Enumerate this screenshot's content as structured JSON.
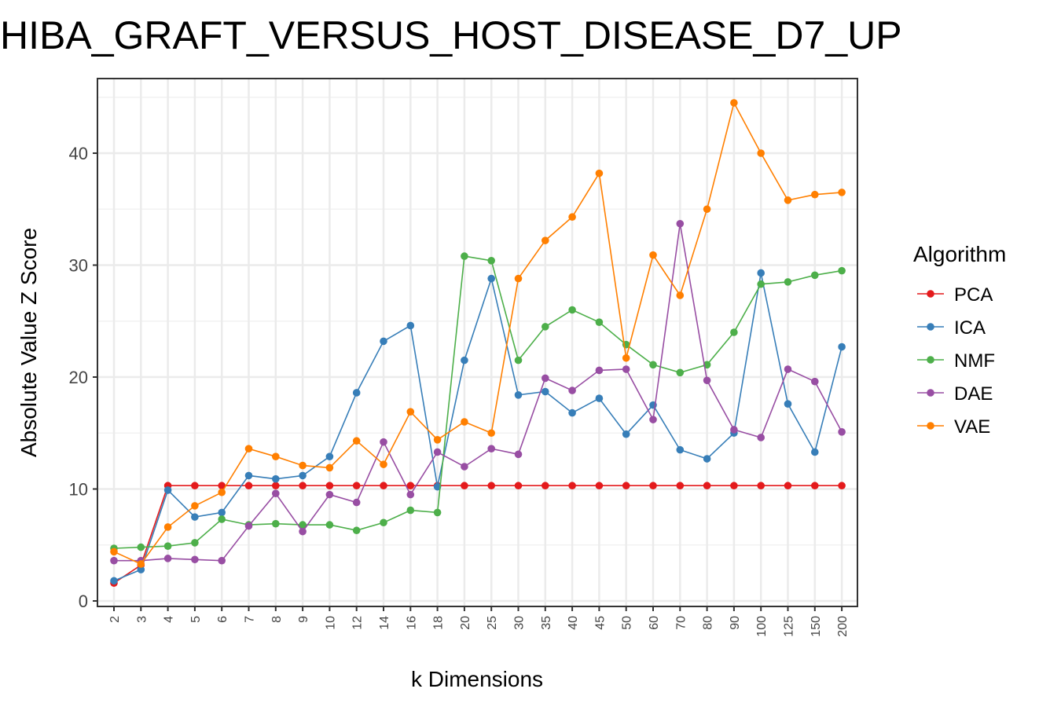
{
  "chart_data": {
    "type": "line",
    "title": "HIBA_GRAFT_VERSUS_HOST_DISEASE_D7_UP",
    "xlabel": "k Dimensions",
    "ylabel": "Absolute Value Z Score",
    "categories": [
      "2",
      "3",
      "4",
      "5",
      "6",
      "7",
      "8",
      "9",
      "10",
      "12",
      "14",
      "16",
      "18",
      "20",
      "25",
      "30",
      "35",
      "40",
      "45",
      "50",
      "60",
      "70",
      "80",
      "90",
      "100",
      "125",
      "150",
      "200"
    ],
    "ylim": [
      0,
      46
    ],
    "yticks": [
      0,
      10,
      20,
      30,
      40
    ],
    "grid": true,
    "legend_title": "Algorithm",
    "legend_position": "right",
    "series": [
      {
        "name": "PCA",
        "color": "#e41a1c",
        "values": [
          1.6,
          3.2,
          10.3,
          10.3,
          10.3,
          10.3,
          10.3,
          10.3,
          10.3,
          10.3,
          10.3,
          10.3,
          10.3,
          10.3,
          10.3,
          10.3,
          10.3,
          10.3,
          10.3,
          10.3,
          10.3,
          10.3,
          10.3,
          10.3,
          10.3,
          10.3,
          10.3,
          10.3
        ]
      },
      {
        "name": "ICA",
        "color": "#377eb8",
        "values": [
          1.8,
          2.8,
          9.9,
          7.5,
          7.9,
          11.2,
          10.9,
          11.2,
          12.9,
          18.6,
          23.2,
          24.6,
          10.2,
          21.5,
          28.8,
          18.4,
          18.7,
          16.8,
          18.1,
          14.9,
          17.5,
          13.5,
          12.7,
          15.0,
          29.3,
          17.6,
          13.3,
          22.7
        ]
      },
      {
        "name": "NMF",
        "color": "#4daf4a",
        "values": [
          4.7,
          4.8,
          4.9,
          5.2,
          7.3,
          6.8,
          6.9,
          6.8,
          6.8,
          6.3,
          7.0,
          8.1,
          7.9,
          30.8,
          30.4,
          21.5,
          24.5,
          26.0,
          24.9,
          22.9,
          21.1,
          20.4,
          21.1,
          24.0,
          28.3,
          28.5,
          29.1,
          29.5
        ]
      },
      {
        "name": "DAE",
        "color": "#984ea3",
        "values": [
          3.6,
          3.6,
          3.8,
          3.7,
          3.6,
          6.7,
          9.6,
          6.2,
          9.5,
          8.8,
          14.2,
          9.5,
          13.3,
          12.0,
          13.6,
          13.1,
          19.9,
          18.8,
          20.6,
          20.7,
          16.2,
          33.7,
          19.7,
          15.3,
          14.6,
          20.7,
          19.6,
          15.1
        ]
      },
      {
        "name": "VAE",
        "color": "#ff7f00",
        "values": [
          4.4,
          3.3,
          6.6,
          8.5,
          9.7,
          13.6,
          12.9,
          12.1,
          11.9,
          14.3,
          12.2,
          16.9,
          14.4,
          16.0,
          15.0,
          28.8,
          32.2,
          34.3,
          38.2,
          21.7,
          30.9,
          27.3,
          35.0,
          44.5,
          40.0,
          35.8,
          36.3,
          36.5
        ]
      }
    ]
  }
}
